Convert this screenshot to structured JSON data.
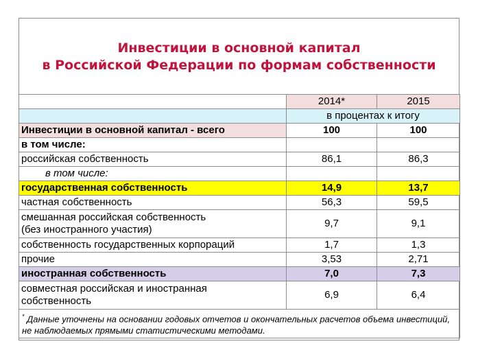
{
  "title": {
    "line1": "Инвестиции в основной капитал",
    "line2": "в Российской Федерации по формам собственности"
  },
  "table": {
    "headers": [
      "2014*",
      "2015"
    ],
    "unit_row": "в процентах к итогу",
    "rows": [
      {
        "label": "Инвестиции в основной капитал - всего",
        "v2014": "100",
        "v2015": "100"
      },
      {
        "label": "в том числе:",
        "v2014": "",
        "v2015": ""
      },
      {
        "label": "российская собственность",
        "v2014": "86,1",
        "v2015": "86,3"
      },
      {
        "label": "в том числе:",
        "v2014": "",
        "v2015": ""
      },
      {
        "label": "государственная собственность",
        "v2014": "14,9",
        "v2015": "13,7"
      },
      {
        "label": "частная собственность",
        "v2014": "56,3",
        "v2015": "59,5"
      },
      {
        "label_line1": "смешанная российская собственность",
        "label_line2": "(без иностранного участия)",
        "v2014": "9,7",
        "v2015": "9,1"
      },
      {
        "label": "собственность государственных корпораций",
        "v2014": "1,7",
        "v2015": "1,3"
      },
      {
        "label": "прочие",
        "v2014": "3,53",
        "v2015": "2,71"
      },
      {
        "label": "иностранная собственность",
        "v2014": "7,0",
        "v2015": "7,3"
      },
      {
        "label_line1": "совместная российская и иностранная",
        "label_line2": "собственность",
        "v2014": "6,9",
        "v2015": "6,4"
      }
    ],
    "footnote_mark": "*",
    "footnote": "Данные уточнены на основании годовых отчетов и окончательных расчетов объема инвестиций, не наблюдаемых прямыми статистическими методами."
  },
  "colors": {
    "title": "#c0143c",
    "header_pink": "#f3dede",
    "unit_cyan": "#d7f3f9",
    "highlight_yellow": "#ffff00",
    "highlight_purple": "#d6cde8"
  }
}
